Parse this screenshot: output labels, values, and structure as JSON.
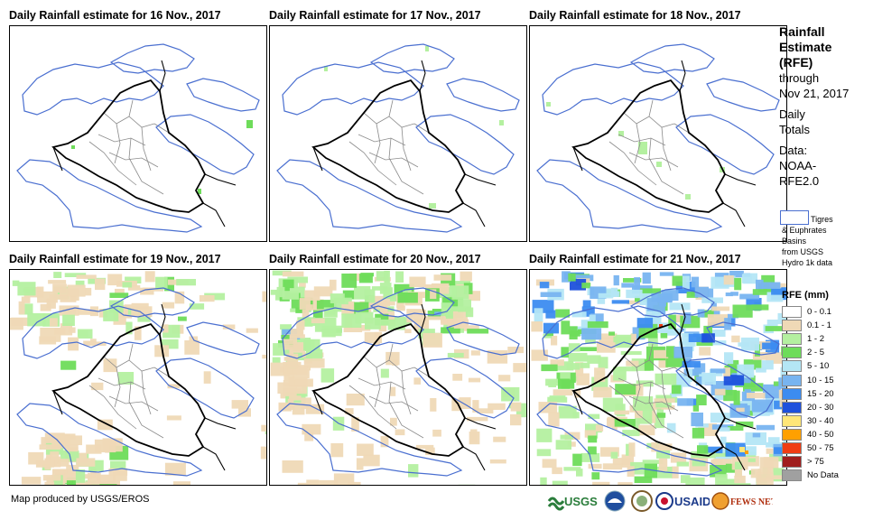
{
  "panels": [
    {
      "title": "Daily Rainfall estimate for 16 Nov., 2017",
      "rain": 0
    },
    {
      "title": "Daily Rainfall estimate for 17 Nov., 2017",
      "rain": 1
    },
    {
      "title": "Daily Rainfall estimate for 18 Nov., 2017",
      "rain": 2
    },
    {
      "title": "Daily Rainfall estimate for 19 Nov., 2017",
      "rain": 3
    },
    {
      "title": "Daily Rainfall estimate for 20 Nov., 2017",
      "rain": 4
    },
    {
      "title": "Daily Rainfall estimate for 21 Nov., 2017",
      "rain": 5
    }
  ],
  "side": {
    "title_line1": "Rainfall",
    "title_line2": "Estimate",
    "title_line3": "(RFE)",
    "through": "through",
    "date": "Nov 21, 2017",
    "daily": "Daily",
    "totals": "Totals",
    "data_label": "Data:",
    "data_src1": "NOAA-",
    "data_src2": "RFE2.0",
    "basin_line1": "Tigres",
    "basin_line2": "& Euphrates",
    "basin_line3": "Basins",
    "basin_line4": "from USGS",
    "basin_line5": "Hydro 1k data"
  },
  "legend": {
    "title": "RFE (mm)",
    "items": [
      {
        "label": "0 - 0.1",
        "color": "#ffffff"
      },
      {
        "label": "0.1 - 1",
        "color": "#efd9b6"
      },
      {
        "label": "1 - 2",
        "color": "#b4f0a0"
      },
      {
        "label": "2 - 5",
        "color": "#6edc5a"
      },
      {
        "label": "5 - 10",
        "color": "#b4e6f5"
      },
      {
        "label": "10 - 15",
        "color": "#78b4f0"
      },
      {
        "label": "15 - 20",
        "color": "#3c8cf0"
      },
      {
        "label": "20 - 30",
        "color": "#1e50dc"
      },
      {
        "label": "30 - 40",
        "color": "#ffe678"
      },
      {
        "label": "40 - 50",
        "color": "#ffa000"
      },
      {
        "label": "50 - 75",
        "color": "#f03c14"
      },
      {
        "label": "> 75",
        "color": "#a01e1e"
      },
      {
        "label": "No Data",
        "color": "#a0a0a0"
      }
    ]
  },
  "footer": "Map produced by USGS/EROS",
  "logos": {
    "usgs": "USGS",
    "usaid": "USAID",
    "fewsnet": "FEWS NET"
  }
}
